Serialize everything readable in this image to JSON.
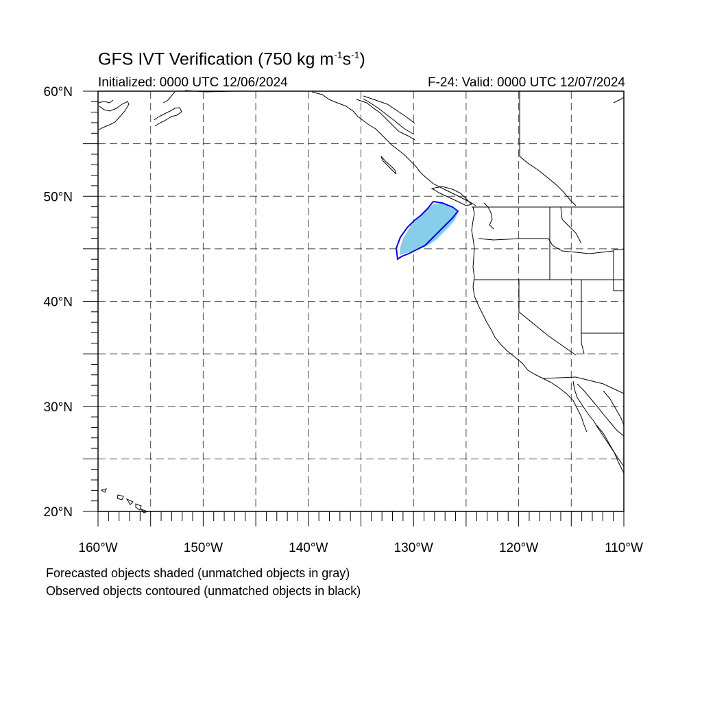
{
  "title": {
    "main": "GFS IVT Verification (750 kg m",
    "sup1": "-1",
    "mid": "s",
    "sup2": "-1",
    "end": ")"
  },
  "initialized": "Initialized: 0000 UTC 12/06/2024",
  "valid": "F-24: Valid: 0000 UTC 12/07/2024",
  "map": {
    "lat_range": [
      20,
      60
    ],
    "lon_range": [
      -160,
      -110
    ],
    "lat_labels": [
      "60°N",
      "50°N",
      "40°N",
      "30°N",
      "20°N"
    ],
    "lon_labels": [
      "160°W",
      "150°W",
      "140°W",
      "130°W",
      "120°W",
      "110°W"
    ],
    "grid_interval_deg": 5,
    "forecast_object_color": "#87ceeb",
    "observed_contour_color": "#0000ff"
  },
  "notes": {
    "line1": "Forecasted objects shaded (unmatched objects in gray)",
    "line2": "Observed objects contoured (unmatched objects in black)"
  }
}
